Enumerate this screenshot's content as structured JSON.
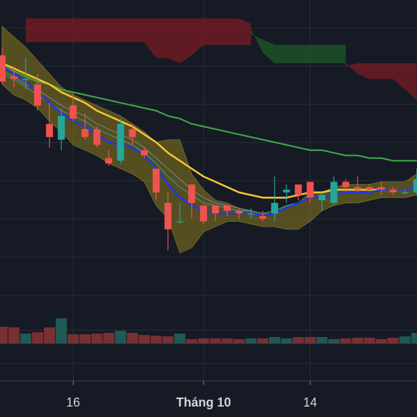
{
  "chart_data": {
    "type": "candlestick",
    "x_ticks": [
      {
        "label": "16",
        "index": 6,
        "bold": false
      },
      {
        "label": "Tháng 10",
        "index": 17,
        "bold": true
      },
      {
        "label": "14",
        "index": 26,
        "bold": false
      }
    ],
    "colors": {
      "background": "#161a25",
      "grid": "#2a2e39",
      "up": "#26a69a",
      "down": "#ef5350",
      "ma_blue": "#2036e6",
      "ma_yellow": "#f7c531",
      "ma_green": "#3fa548",
      "ma_teal": "#3f9fa0",
      "ma_gray": "#7b8a99",
      "band": "#8a7a1e",
      "cloud_bear": "#7a1c22",
      "cloud_bull": "#1d5a2a",
      "volume_up": "#1f5a54",
      "volume_down": "#7a2f33"
    },
    "y_range": [
      -12,
      108
    ],
    "candles": [
      {
        "o": 87,
        "h": 90,
        "l": 76,
        "c": 77
      },
      {
        "o": 79,
        "h": 83,
        "l": 75,
        "c": 78
      },
      {
        "o": 78,
        "h": 86,
        "l": 74,
        "c": 78
      },
      {
        "o": 76,
        "h": 80,
        "l": 66,
        "c": 68
      },
      {
        "o": 61,
        "h": 69,
        "l": 52,
        "c": 56
      },
      {
        "o": 55,
        "h": 67,
        "l": 51,
        "c": 64
      },
      {
        "o": 68,
        "h": 73,
        "l": 62,
        "c": 63
      },
      {
        "o": 59,
        "h": 65,
        "l": 55,
        "c": 56
      },
      {
        "o": 59,
        "h": 60,
        "l": 52,
        "c": 53
      },
      {
        "o": 48,
        "h": 51,
        "l": 45,
        "c": 46
      },
      {
        "o": 47,
        "h": 63,
        "l": 46,
        "c": 61
      },
      {
        "o": 59,
        "h": 61,
        "l": 53,
        "c": 56
      },
      {
        "o": 51,
        "h": 52,
        "l": 48,
        "c": 49
      },
      {
        "o": 44,
        "h": 44,
        "l": 32,
        "c": 35
      },
      {
        "o": 31,
        "h": 35,
        "l": 13,
        "c": 21
      },
      {
        "o": 24,
        "h": 31,
        "l": 23,
        "c": 24
      },
      {
        "o": 38,
        "h": 38,
        "l": 25,
        "c": 31
      },
      {
        "o": 30,
        "h": 30,
        "l": 23,
        "c": 24
      },
      {
        "o": 30,
        "h": 30,
        "l": 24,
        "c": 27
      },
      {
        "o": 30,
        "h": 30,
        "l": 26,
        "c": 28
      },
      {
        "o": 28,
        "h": 29,
        "l": 25,
        "c": 27
      },
      {
        "o": 27,
        "h": 29,
        "l": 25,
        "c": 27
      },
      {
        "o": 26,
        "h": 28,
        "l": 24,
        "c": 25
      },
      {
        "o": 27,
        "h": 41,
        "l": 24,
        "c": 31
      },
      {
        "o": 35,
        "h": 38,
        "l": 31,
        "c": 36
      },
      {
        "o": 38,
        "h": 38,
        "l": 32,
        "c": 34
      },
      {
        "o": 39,
        "h": 39,
        "l": 31,
        "c": 33
      },
      {
        "o": 32,
        "h": 35,
        "l": 28,
        "c": 34
      },
      {
        "o": 31,
        "h": 41,
        "l": 30,
        "c": 39
      },
      {
        "o": 39,
        "h": 40,
        "l": 35,
        "c": 37
      },
      {
        "o": 37,
        "h": 41,
        "l": 35,
        "c": 36
      },
      {
        "o": 37,
        "h": 38,
        "l": 35,
        "c": 36
      },
      {
        "o": 37,
        "h": 39,
        "l": 34,
        "c": 36
      },
      {
        "o": 36,
        "h": 37,
        "l": 34,
        "c": 35
      },
      {
        "o": 35,
        "h": 36,
        "l": 34,
        "c": 35
      },
      {
        "o": 35,
        "h": 44,
        "l": 34,
        "c": 40
      }
    ],
    "volume": [
      2.4,
      2.3,
      1.4,
      1.6,
      2.3,
      3.6,
      1.3,
      1.3,
      1.4,
      1.5,
      1.8,
      1.5,
      1.2,
      1.1,
      1.0,
      1.4,
      0.6,
      0.7,
      0.7,
      0.7,
      0.6,
      0.7,
      0.7,
      0.9,
      0.7,
      0.9,
      0.9,
      0.9,
      0.6,
      0.7,
      0.8,
      0.8,
      0.6,
      0.8,
      1.0,
      1.5
    ],
    "ma_blue": [
      83,
      80,
      77,
      73,
      69,
      65,
      62,
      60,
      57,
      54,
      53,
      52,
      49,
      44,
      38,
      33,
      30,
      28,
      27,
      27,
      27,
      27,
      26,
      27,
      29,
      31,
      33,
      33,
      34,
      35,
      35,
      35,
      36,
      36,
      36,
      37
    ],
    "ma_yellow": [
      84,
      82,
      80,
      78,
      76,
      73,
      71,
      69,
      66,
      64,
      62,
      60,
      57,
      54,
      50,
      47,
      44,
      41,
      39,
      37,
      35,
      34,
      33,
      33,
      33,
      34,
      35,
      35,
      36,
      36,
      36,
      36,
      36,
      36,
      36,
      37
    ],
    "ma_green": [
      83,
      81,
      79,
      77,
      76,
      74,
      73,
      72,
      71,
      70,
      69,
      68,
      67,
      66,
      64,
      63,
      61,
      60,
      59,
      58,
      57,
      56,
      55,
      54,
      53,
      52,
      51,
      51,
      50,
      49,
      49,
      48,
      48,
      47,
      47,
      47
    ],
    "ma_teal": [
      80,
      78,
      75,
      72,
      69,
      66,
      64,
      62,
      59,
      57,
      55,
      53,
      50,
      46,
      41,
      37,
      34,
      31,
      30,
      29,
      28,
      28,
      27,
      28,
      30,
      31,
      33,
      33,
      34,
      35,
      35,
      35,
      36,
      36,
      36,
      37
    ],
    "ma_gray": [
      81,
      79,
      76,
      74,
      71,
      68,
      66,
      64,
      61,
      59,
      57,
      55,
      52,
      48,
      44,
      40,
      36,
      33,
      31,
      30,
      29,
      28,
      27,
      28,
      30,
      31,
      33,
      33,
      34,
      35,
      35,
      35,
      36,
      36,
      36,
      37
    ],
    "band_upper": [
      98,
      94,
      90,
      85,
      80,
      75,
      72,
      70,
      68,
      66,
      64,
      61,
      58,
      54,
      55,
      55,
      42,
      36,
      32,
      31,
      29,
      28,
      27,
      27,
      30,
      31,
      35,
      35,
      37,
      38,
      38,
      38,
      39,
      39,
      39,
      42
    ],
    "band_lower": [
      76,
      72,
      70,
      67,
      62,
      58,
      53,
      51,
      49,
      46,
      44,
      42,
      39,
      30,
      25,
      12,
      14,
      20,
      22,
      24,
      24,
      23,
      22,
      22,
      21,
      21,
      24,
      28,
      30,
      31,
      31,
      32,
      33,
      33,
      33,
      34
    ],
    "cloud_segments": [
      {
        "sentiment": "bear",
        "from": 2,
        "to": 21,
        "top": [
          101,
          101,
          101,
          101,
          101,
          101,
          101,
          101,
          101,
          101,
          101,
          101,
          101,
          101,
          101,
          101,
          101,
          101,
          101,
          99
        ],
        "bottom": [
          92,
          92,
          92,
          92,
          92,
          92,
          92,
          92,
          92,
          92,
          92,
          86,
          86,
          84,
          87,
          91,
          91,
          91,
          91,
          91
        ]
      },
      {
        "sentiment": "bull",
        "from": 21,
        "to": 29,
        "top": [
          95,
          93,
          91,
          91,
          91,
          91,
          91,
          91,
          91
        ],
        "bottom": [
          97,
          88,
          84,
          84,
          84,
          84,
          84,
          84,
          84
        ]
      },
      {
        "sentiment": "bear",
        "from": 29,
        "to": 35,
        "top": [
          83,
          84,
          84,
          84,
          84,
          84,
          84
        ],
        "bottom": [
          84,
          80,
          78,
          78,
          78,
          74,
          70
        ]
      }
    ]
  }
}
